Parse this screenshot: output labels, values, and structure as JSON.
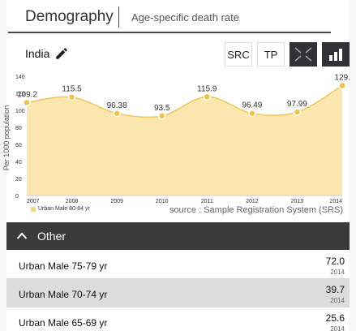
{
  "header": {
    "title": "Demography",
    "subtitle": "Age-specific death rate"
  },
  "region": {
    "name": "India",
    "edit_icon": "pencil-icon"
  },
  "toolbar": {
    "buttons": [
      {
        "label": "SRC"
      },
      {
        "label": "TP"
      },
      {
        "label": "",
        "icon": "expand-icon"
      },
      {
        "label": "",
        "icon": "bar-chart-icon"
      }
    ]
  },
  "chart_data": {
    "type": "area",
    "x": [
      "2007",
      "2008",
      "2009",
      "2010",
      "2011",
      "2012",
      "2013",
      "2014"
    ],
    "series": [
      {
        "name": "Urban Male 80-84 yr",
        "values": [
          109.2,
          115.5,
          96.38,
          93.5,
          115.9,
          96.49,
          97.99,
          129
        ]
      }
    ],
    "data_labels": [
      "109.2",
      "115.5",
      "96.38",
      "93.5",
      "115.9",
      "96.49",
      "97.99",
      "129."
    ],
    "ylabel": "Per 1000 population",
    "y_ticks": [
      "0",
      "20",
      "40",
      "60",
      "80",
      "100",
      "120",
      "140"
    ],
    "ylim": [
      0,
      140
    ],
    "grid": false,
    "legend": "bottom-left",
    "colors": {
      "fill": "#fbe6b0",
      "line": "#f1c656",
      "point": "#f0c24c"
    },
    "source": "source : Sample Registration System (SRS)"
  },
  "other": {
    "label": "Other"
  },
  "list": [
    {
      "label": "Urban Male 75-79 yr",
      "value": "72.0",
      "year": "2014"
    },
    {
      "label": "Urban Male 70-74 yr",
      "value": "39.7",
      "year": "2014"
    },
    {
      "label": "Urban Male 65-69 yr",
      "value": "25.6",
      "year": "2014"
    }
  ]
}
